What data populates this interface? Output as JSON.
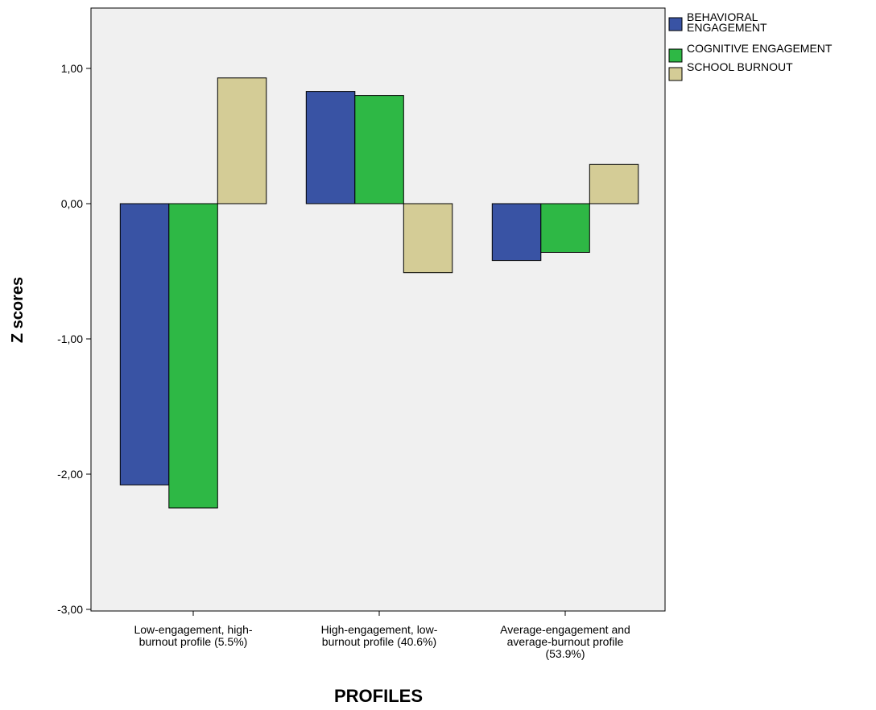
{
  "chart_data": {
    "type": "bar",
    "title": "",
    "xlabel": "PROFILES",
    "ylabel": "Z scores",
    "ylim": [
      -3,
      1.4
    ],
    "yticks": [
      1,
      0,
      -1,
      -2,
      -3
    ],
    "ytick_labels": [
      "1,00",
      "0,00",
      "-1,00",
      "-2,00",
      "-3,00"
    ],
    "categories": [
      [
        "Low-engagement, high-",
        "burnout profile (5.5%)"
      ],
      [
        "High-engagement, low-",
        "burnout profile (40.6%)"
      ],
      [
        "Average-engagement and",
        "average-burnout profile",
        "(53.9%)"
      ]
    ],
    "series": [
      {
        "name": [
          "BEHAVIORAL",
          "ENGAGEMENT"
        ],
        "color": "#3953a4",
        "values": [
          -2.08,
          0.83,
          -0.42
        ]
      },
      {
        "name": [
          "COGNITIVE ENGAGEMENT"
        ],
        "color": "#2eb845",
        "values": [
          -2.25,
          0.8,
          -0.36
        ]
      },
      {
        "name": [
          "SCHOOL BURNOUT"
        ],
        "color": "#d4cc96",
        "values": [
          0.93,
          -0.51,
          0.29
        ]
      }
    ],
    "plot_background": "#f0f0f0",
    "grid": false,
    "legend_position": "right"
  }
}
